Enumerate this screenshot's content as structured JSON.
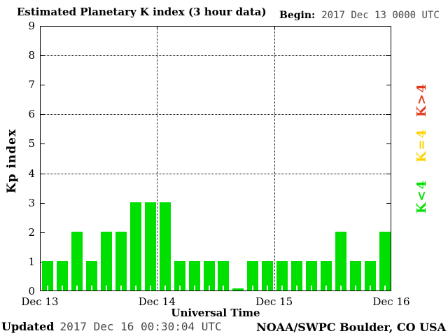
{
  "begin": {
    "label": "Begin:",
    "value": "2017 Dec 13 0000 UTC"
  },
  "footer": {
    "updated_label": "Updated",
    "updated_value": "2017 Dec 16 00:30:04 UTC",
    "credit": "NOAA/SWPC Boulder, CO USA"
  },
  "chart_data": {
    "type": "bar",
    "title": "Estimated Planetary K index (3 hour data)",
    "xlabel": "Universal Time",
    "ylabel": "Kp index",
    "begin": "2017 Dec 13 0000 UTC",
    "interval_hours": 3,
    "ylim": [
      0,
      9
    ],
    "yticks": [
      0,
      1,
      2,
      3,
      4,
      5,
      6,
      7,
      8,
      9
    ],
    "grid_y": [
      4,
      6,
      8
    ],
    "grid_style": "dotted",
    "x_day_labels": [
      "Dec 13",
      "Dec 14",
      "Dec 15",
      "Dec 16"
    ],
    "values": [
      1,
      1,
      2,
      1,
      2,
      2,
      3,
      3,
      3,
      1,
      1,
      1,
      1,
      0,
      1,
      1,
      1,
      1,
      1,
      1,
      2,
      1,
      1,
      2
    ],
    "bar_color": "#00e000",
    "legend_position": "right",
    "legend": [
      {
        "label": "K>4",
        "color": "#e2391b"
      },
      {
        "label": "K=4",
        "color": "#ffd300"
      },
      {
        "label": "K<4",
        "color": "#00e000"
      }
    ]
  }
}
